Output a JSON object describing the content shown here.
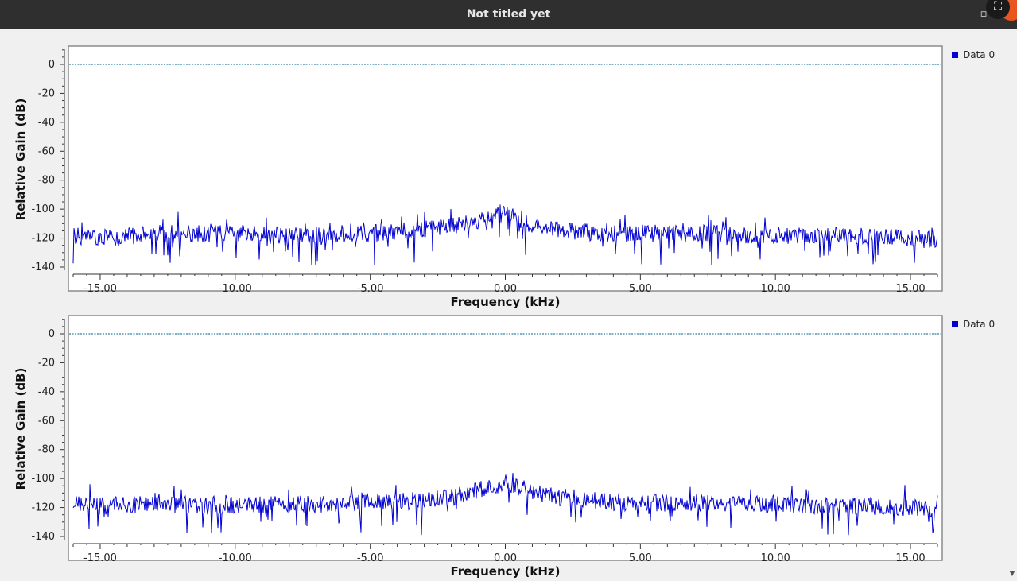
{
  "window": {
    "title": "Not titled yet",
    "minimize_glyph": "–",
    "maximize_glyph": "▫",
    "overlay_glyph": "⛶"
  },
  "colors": {
    "trace": "#0000d0",
    "reference_line": "#00608a",
    "plot_background": "#ffffff",
    "window_background": "#f0f0f0",
    "titlebar": "#2f2f2f",
    "close_button": "#e95420"
  },
  "chart_data": [
    {
      "type": "line",
      "title": "",
      "xlabel": "Frequency (kHz)",
      "ylabel": "Relative Gain (dB)",
      "xlim": [
        -16.0,
        16.0
      ],
      "ylim": [
        -140,
        10
      ],
      "xticks": [
        "-15.00",
        "-10.00",
        "-5.00",
        "0.00",
        "5.00",
        "10.00",
        "15.00"
      ],
      "xtick_values": [
        -15,
        -10,
        -5,
        0,
        5,
        10,
        15
      ],
      "yticks": [
        "0",
        "-20",
        "-40",
        "-60",
        "-80",
        "-100",
        "-120",
        "-140"
      ],
      "ytick_values": [
        0,
        -20,
        -40,
        -60,
        -80,
        -100,
        -120,
        -140
      ],
      "reference_line_db": 0,
      "legend": {
        "placement": "top-right",
        "entries": [
          "Data 0"
        ]
      },
      "series": [
        {
          "name": "Data 0",
          "x": [
            -16.0,
            -15.0,
            -14.0,
            -13.0,
            -12.0,
            -11.0,
            -10.0,
            -9.0,
            -8.0,
            -7.0,
            -6.0,
            -5.0,
            -4.0,
            -3.0,
            -2.0,
            -1.0,
            0.0,
            1.0,
            2.0,
            3.0,
            4.0,
            5.0,
            6.0,
            7.0,
            8.0,
            9.0,
            10.0,
            11.0,
            12.0,
            13.0,
            14.0,
            15.0,
            16.0
          ],
          "y": [
            -118,
            -120,
            -119,
            -116,
            -117,
            -117,
            -117,
            -118,
            -118,
            -118,
            -117,
            -117,
            -115,
            -114,
            -112,
            -109,
            -102,
            -111,
            -114,
            -116,
            -117,
            -117,
            -117,
            -117,
            -117,
            -118,
            -118,
            -118,
            -118,
            -118,
            -119,
            -120,
            -122
          ]
        }
      ],
      "grid": false
    },
    {
      "type": "line",
      "title": "",
      "xlabel": "Frequency (kHz)",
      "ylabel": "Relative Gain (dB)",
      "xlim": [
        -16.0,
        16.0
      ],
      "ylim": [
        -140,
        10
      ],
      "xticks": [
        "-15.00",
        "-10.00",
        "-5.00",
        "0.00",
        "5.00",
        "10.00",
        "15.00"
      ],
      "xtick_values": [
        -15,
        -10,
        -5,
        0,
        5,
        10,
        15
      ],
      "yticks": [
        "0",
        "-20",
        "-40",
        "-60",
        "-80",
        "-100",
        "-120",
        "-140"
      ],
      "ytick_values": [
        0,
        -20,
        -40,
        -60,
        -80,
        -100,
        -120,
        -140
      ],
      "reference_line_db": 0,
      "legend": {
        "placement": "top-right",
        "entries": [
          "Data 0"
        ]
      },
      "series": [
        {
          "name": "Data 0",
          "x": [
            -16.0,
            -15.0,
            -14.0,
            -13.0,
            -12.0,
            -11.0,
            -10.0,
            -9.0,
            -8.0,
            -7.0,
            -6.0,
            -5.0,
            -4.0,
            -3.0,
            -2.0,
            -1.0,
            0.0,
            1.0,
            2.0,
            3.0,
            4.0,
            5.0,
            6.0,
            7.0,
            8.0,
            9.0,
            10.0,
            11.0,
            12.0,
            13.0,
            14.0,
            15.0,
            16.0
          ],
          "y": [
            -118,
            -119,
            -118,
            -117,
            -118,
            -119,
            -119,
            -118,
            -117,
            -118,
            -117,
            -116,
            -116,
            -115,
            -113,
            -108,
            -103,
            -109,
            -113,
            -115,
            -116,
            -117,
            -117,
            -117,
            -117,
            -118,
            -118,
            -118,
            -119,
            -119,
            -119,
            -120,
            -121
          ]
        }
      ],
      "grid": false
    }
  ]
}
